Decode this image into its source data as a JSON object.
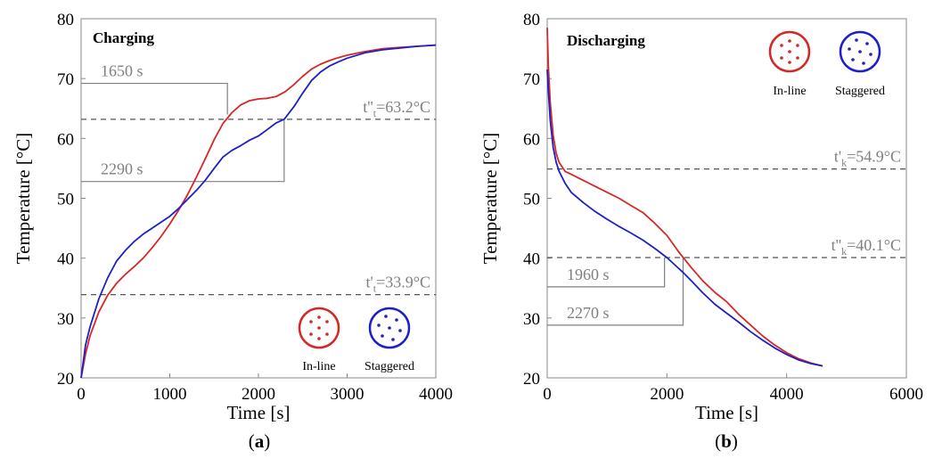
{
  "colors": {
    "inline": "#d62728",
    "staggered": "#1f1fc8",
    "annotation": "#808080",
    "threshold": "#555555"
  },
  "chart_data": [
    {
      "type": "line",
      "panel": "a",
      "caption_letter": "a",
      "title": "Charging",
      "xlabel": "Time [s]",
      "ylabel": "Temperature [°C]",
      "xlim": [
        0,
        4000
      ],
      "ylim": [
        20,
        80
      ],
      "xticks": [
        0,
        1000,
        2000,
        3000,
        4000
      ],
      "yticks": [
        20,
        30,
        40,
        50,
        60,
        70,
        80
      ],
      "legend": [
        {
          "label": "In-line",
          "color": "#d62728",
          "pattern": "in-line"
        },
        {
          "label": "Staggered",
          "color": "#1f1fc8",
          "pattern": "staggered"
        }
      ],
      "legend_position": "bottom-right",
      "series": [
        {
          "name": "In-line",
          "color": "#d62728",
          "x": [
            0,
            50,
            100,
            200,
            300,
            400,
            500,
            600,
            700,
            800,
            900,
            1000,
            1100,
            1200,
            1300,
            1400,
            1500,
            1600,
            1650,
            1700,
            1800,
            1900,
            2000,
            2100,
            2200,
            2300,
            2400,
            2500,
            2600,
            2700,
            2800,
            2900,
            3000,
            3200,
            3400,
            3600,
            3800,
            4000
          ],
          "y": [
            20,
            24,
            27,
            31,
            33.8,
            35.8,
            37.3,
            38.6,
            40,
            41.7,
            43.6,
            45.7,
            48,
            50.6,
            53.5,
            56.6,
            59.8,
            62.5,
            63.4,
            64.3,
            65.6,
            66.3,
            66.6,
            66.7,
            67,
            67.8,
            69,
            70.4,
            71.6,
            72.4,
            73,
            73.5,
            73.9,
            74.5,
            75,
            75.2,
            75.4,
            75.6
          ]
        },
        {
          "name": "Staggered",
          "color": "#1f1fc8",
          "x": [
            0,
            50,
            100,
            200,
            300,
            400,
            500,
            600,
            700,
            800,
            900,
            1000,
            1100,
            1200,
            1300,
            1400,
            1500,
            1600,
            1700,
            1800,
            1900,
            2000,
            2100,
            2200,
            2290,
            2400,
            2500,
            2600,
            2700,
            2800,
            2900,
            3000,
            3200,
            3400,
            3600,
            3800,
            4000
          ],
          "y": [
            20,
            25.5,
            28.5,
            33.2,
            36.7,
            39.5,
            41.3,
            42.8,
            44,
            45,
            46,
            47,
            48.3,
            49.8,
            51.3,
            53,
            55,
            56.9,
            58,
            58.8,
            59.7,
            60.4,
            61.5,
            62.6,
            63.2,
            65.3,
            67.6,
            69.7,
            71.1,
            72.1,
            72.8,
            73.4,
            74.3,
            74.8,
            75.1,
            75.4,
            75.6
          ]
        }
      ],
      "thresholds": [
        {
          "label": "t'",
          "sub": "t",
          "value_text": "=33.9°C",
          "y": 33.9
        },
        {
          "label": "t''",
          "sub": "t",
          "value_text": "=63.2°C",
          "y": 63.2
        }
      ],
      "time_markers": [
        {
          "label": "1650 s",
          "x": 1650,
          "y": 69.2
        },
        {
          "label": "2290 s",
          "x": 2290,
          "y": 52.8
        }
      ]
    },
    {
      "type": "line",
      "panel": "b",
      "caption_letter": "b",
      "title": "Discharging",
      "xlabel": "Time [s]",
      "ylabel": "Temperature [°C]",
      "xlim": [
        0,
        6000
      ],
      "ylim": [
        20,
        80
      ],
      "xticks": [
        0,
        2000,
        4000,
        6000
      ],
      "yticks": [
        20,
        30,
        40,
        50,
        60,
        70,
        80
      ],
      "legend": [
        {
          "label": "In-line",
          "color": "#d62728",
          "pattern": "in-line"
        },
        {
          "label": "Staggered",
          "color": "#1f1fc8",
          "pattern": "staggered"
        }
      ],
      "legend_position": "top-right",
      "series": [
        {
          "name": "In-line",
          "color": "#d62728",
          "x": [
            0,
            20,
            50,
            100,
            150,
            200,
            300,
            400,
            600,
            800,
            1000,
            1200,
            1400,
            1600,
            1800,
            1960,
            2000,
            2200,
            2400,
            2600,
            2800,
            3000,
            3200,
            3400,
            3600,
            3800,
            4000,
            4200,
            4400,
            4600
          ],
          "y": [
            78.5,
            72,
            66,
            60.5,
            57.5,
            56,
            54.5,
            54,
            53,
            52,
            51,
            50,
            48.8,
            47.6,
            45.8,
            44.2,
            43.8,
            41,
            38.5,
            36.2,
            34.3,
            32.7,
            30.6,
            28.8,
            27,
            25.5,
            24.2,
            23.2,
            22.5,
            22
          ]
        },
        {
          "name": "Staggered",
          "color": "#1f1fc8",
          "x": [
            0,
            20,
            50,
            100,
            150,
            200,
            300,
            400,
            600,
            800,
            1000,
            1200,
            1400,
            1600,
            1800,
            1960,
            2000,
            2270,
            2400,
            2600,
            2800,
            3000,
            3200,
            3400,
            3600,
            3800,
            4000,
            4200,
            4400,
            4600
          ],
          "y": [
            71.5,
            68,
            63,
            58.5,
            56,
            54.5,
            52.5,
            51,
            49.3,
            47.8,
            46.5,
            45.3,
            44.2,
            43,
            41.6,
            40.4,
            40.1,
            37.6,
            36.3,
            34.2,
            32.3,
            30.8,
            29.3,
            27.7,
            26.3,
            25,
            23.9,
            23,
            22.4,
            22
          ]
        }
      ],
      "thresholds": [
        {
          "label": "t'",
          "sub": "k",
          "value_text": "=54.9°C",
          "y": 54.9
        },
        {
          "label": "t''",
          "sub": "k",
          "value_text": "=40.1°C",
          "y": 40.1
        }
      ],
      "time_markers": [
        {
          "label": "1960 s",
          "x": 1960,
          "y": 35.2
        },
        {
          "label": "2270 s",
          "x": 2270,
          "y": 28.8
        }
      ]
    }
  ]
}
